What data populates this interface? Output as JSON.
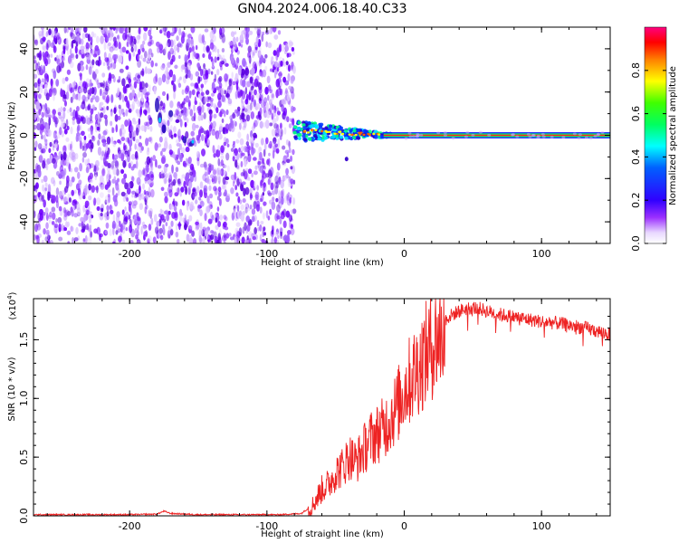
{
  "title": "GN04.2024.006.18.40.C33",
  "colors": {
    "trace": "#ee2222",
    "frame": "#000000",
    "scatter": "#7a00ff"
  },
  "chart_data": [
    {
      "type": "heatmap",
      "title": "GN04.2024.006.18.40.C33",
      "xlabel": "Height of straight line (km)",
      "ylabel": "Frequency (Hz)",
      "xlim": [
        -270,
        150
      ],
      "ylim": [
        -50,
        50
      ],
      "xticks": [
        "-200",
        "-100",
        "0",
        "100"
      ],
      "xtick_values": [
        -200,
        -100,
        0,
        100
      ],
      "yticks": [
        "40",
        "20",
        "0",
        "-20",
        "-40"
      ],
      "ytick_values": [
        40,
        20,
        0,
        -20,
        -40
      ],
      "noise_region_end_x": -80,
      "signal_frequency": 0,
      "colorbar": {
        "label": "Normalized spectral amplitude",
        "range": [
          0,
          1
        ],
        "ticks": [
          "0.0",
          "0.2",
          "0.4",
          "0.6",
          "0.8"
        ],
        "tick_values": [
          0.0,
          0.2,
          0.4,
          0.6,
          0.8
        ]
      }
    },
    {
      "type": "line",
      "xlabel": "Height of straight line (km)",
      "ylabel": "SNR (10 * v/v)",
      "multiplier": "(x10",
      "multiplier_exp": "4",
      "multiplier_close": ")",
      "xlim": [
        -270,
        150
      ],
      "ylim": [
        0,
        1.85
      ],
      "xticks": [
        "-200",
        "-100",
        "0",
        "100"
      ],
      "xtick_values": [
        -200,
        -100,
        0,
        100
      ],
      "yticks": [
        "0.0",
        "0.5",
        "1.0",
        "1.5"
      ],
      "ytick_values": [
        0.0,
        0.5,
        1.0,
        1.5
      ],
      "series": [
        {
          "x": [
            -270,
            -250,
            -200,
            -180,
            -175,
            -170,
            -150,
            -120,
            -90,
            -75,
            -68,
            -60,
            -55,
            -50,
            -45,
            -40,
            -35,
            -30,
            -25,
            -20,
            -15,
            -10,
            -5,
            0,
            5,
            10,
            15,
            20,
            25,
            30,
            35,
            40,
            45,
            50,
            55,
            60,
            70,
            80,
            90,
            100,
            110,
            120,
            130,
            140,
            150
          ],
          "y": [
            0.01,
            0.01,
            0.01,
            0.015,
            0.04,
            0.02,
            0.01,
            0.01,
            0.01,
            0.02,
            0.08,
            0.25,
            0.3,
            0.4,
            0.45,
            0.55,
            0.5,
            0.6,
            0.7,
            0.75,
            0.8,
            0.9,
            1.0,
            1.15,
            1.25,
            1.35,
            1.45,
            1.55,
            1.62,
            1.68,
            1.72,
            1.75,
            1.77,
            1.78,
            1.77,
            1.75,
            1.72,
            1.7,
            1.68,
            1.66,
            1.65,
            1.63,
            1.61,
            1.58,
            1.55
          ]
        }
      ]
    }
  ]
}
